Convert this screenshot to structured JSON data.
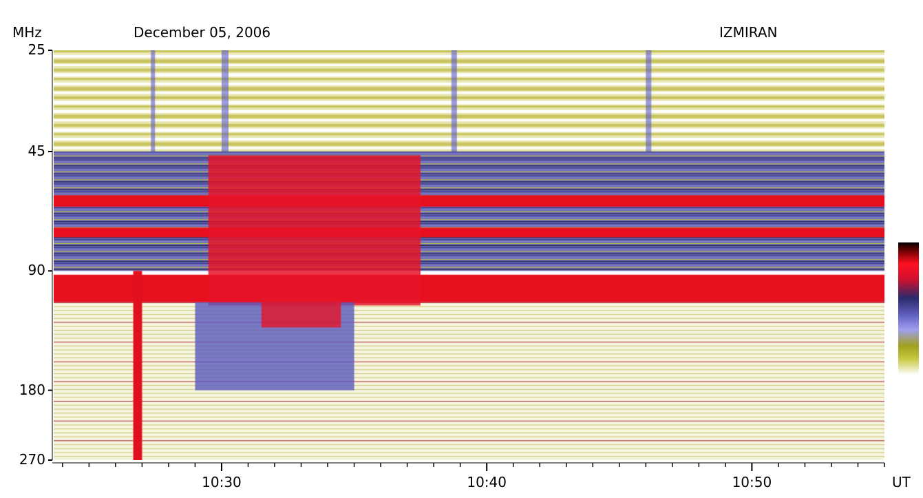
{
  "header": {
    "unit_label": "MHz",
    "date": "December 05, 2006",
    "observatory": "IZMIRAN",
    "x_unit": "UT"
  },
  "chart_data": {
    "type": "heatmap",
    "title": "",
    "xlabel": "UT",
    "ylabel": "MHz",
    "x_range": [
      "10:23:40",
      "10:55:00"
    ],
    "y_range": [
      25,
      270
    ],
    "y_scale": "log",
    "yticks": [
      {
        "value": 25,
        "label": "25"
      },
      {
        "value": 45,
        "label": "45"
      },
      {
        "value": 90,
        "label": "90"
      },
      {
        "value": 180,
        "label": "180"
      },
      {
        "value": 270,
        "label": "270"
      }
    ],
    "xticks_major": [
      {
        "value": "10:30",
        "label": "10:30"
      },
      {
        "value": "10:40",
        "label": "10:40"
      },
      {
        "value": "10:50",
        "label": "10:50"
      }
    ],
    "colorbar": {
      "colors": [
        "#000000",
        "#ff1020",
        "#6060c0",
        "#a0a020",
        "#ffffff"
      ],
      "meaning": "intensity high to low"
    },
    "features": [
      {
        "name": "burst",
        "t_start": "10:26:40",
        "t_end": "10:27:00",
        "f_low": 90,
        "f_high": 270
      },
      {
        "name": "continuum",
        "t_start": "10:29:30",
        "t_end": "10:37:30",
        "f_low": 45,
        "f_high": 180
      }
    ]
  }
}
